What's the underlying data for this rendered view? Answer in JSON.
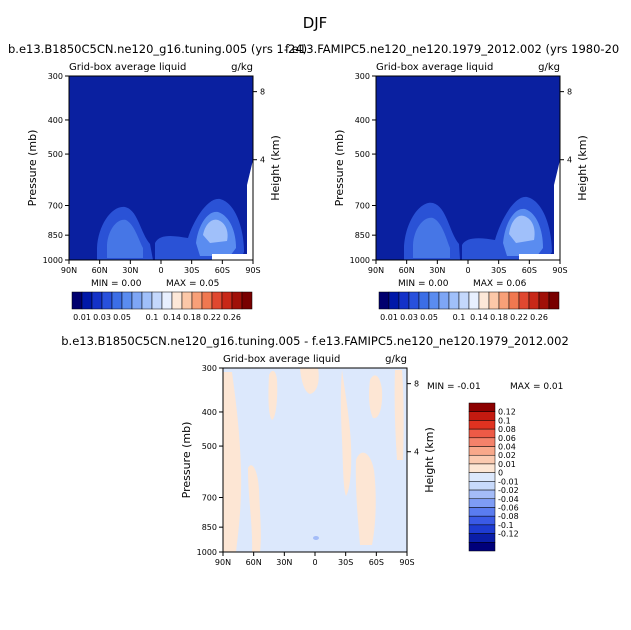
{
  "figure_title": "DJF",
  "colors": {
    "left_scale": [
      "#00006e",
      "#0018a8",
      "#1432c8",
      "#2850dc",
      "#3c6ee6",
      "#5a8cf0",
      "#7ea6f5",
      "#a0c0fa",
      "#c4d8fc",
      "#e8f0ff",
      "#fde8d8",
      "#fcc8a8",
      "#f8a078",
      "#f07850",
      "#e04830",
      "#c82818",
      "#a01008",
      "#780000"
    ],
    "diff_scale": [
      "#00007a",
      "#0a1ea8",
      "#1e3cd2",
      "#3a5ae6",
      "#5a7cf0",
      "#7e9cf5",
      "#a4bcf8",
      "#c8dafb",
      "#dce8fc",
      "#fde6d4",
      "#fbcab0",
      "#f8a88a",
      "#f4826a",
      "#ee5a46",
      "#e03220",
      "#c41a10",
      "#8c0000"
    ]
  },
  "chart_data": [
    {
      "type": "heatmap",
      "title": "b.e13.B1850C5CN.ne120_g16.tuning.005 (yrs 1-24)",
      "subtitle_left": "Grid-box average liquid",
      "subtitle_right": "g/kg",
      "ylabel": "Pressure (mb)",
      "ylabel_right": "Height (km)",
      "x_ticks": [
        "90N",
        "60N",
        "30N",
        "0",
        "30S",
        "60S",
        "90S"
      ],
      "y_ticks": [
        "300",
        "400",
        "500",
        "700",
        "850",
        "1000"
      ],
      "y_right_ticks": [
        "8",
        "4"
      ],
      "min_label": "MIN =    0.00",
      "max_label": "MAX =    0.05",
      "colorbar_labels": [
        "0.01",
        "0.03",
        "0.05",
        "0.1",
        "0.14",
        "0.18",
        "0.22",
        "0.26"
      ]
    },
    {
      "type": "heatmap",
      "title": "f.e13.FAMIPC5.ne120_ne120.1979_2012.002 (yrs 1980-20",
      "subtitle_left": "Grid-box average liquid",
      "subtitle_right": "g/kg",
      "ylabel": "Pressure (mb)",
      "ylabel_right": "Height (km)",
      "x_ticks": [
        "90N",
        "60N",
        "30N",
        "0",
        "30S",
        "60S",
        "90S"
      ],
      "y_ticks": [
        "300",
        "400",
        "500",
        "700",
        "850",
        "1000"
      ],
      "y_right_ticks": [
        "8",
        "4"
      ],
      "min_label": "MIN =    0.00",
      "max_label": "MAX =    0.06",
      "colorbar_labels": [
        "0.01",
        "0.03",
        "0.05",
        "0.1",
        "0.14",
        "0.18",
        "0.22",
        "0.26"
      ]
    },
    {
      "type": "heatmap",
      "title": "b.e13.B1850C5CN.ne120_g16.tuning.005 - f.e13.FAMIPC5.ne120_ne120.1979_2012.002",
      "subtitle_left": "Grid-box average liquid",
      "subtitle_right": "g/kg",
      "ylabel": "Pressure (mb)",
      "ylabel_right": "Height (km)",
      "x_ticks": [
        "90N",
        "60N",
        "30N",
        "0",
        "30S",
        "60S",
        "90S"
      ],
      "y_ticks": [
        "300",
        "400",
        "500",
        "700",
        "850",
        "1000"
      ],
      "y_right_ticks": [
        "8",
        "4"
      ],
      "min_label": "MIN =   -0.01",
      "max_label": "MAX =    0.01",
      "colorbar_labels": [
        "0.12",
        "0.1",
        "0.08",
        "0.06",
        "0.04",
        "0.02",
        "0.01",
        "0",
        "-0.01",
        "-0.02",
        "-0.04",
        "-0.06",
        "-0.08",
        "-0.1",
        "-0.12"
      ]
    }
  ]
}
